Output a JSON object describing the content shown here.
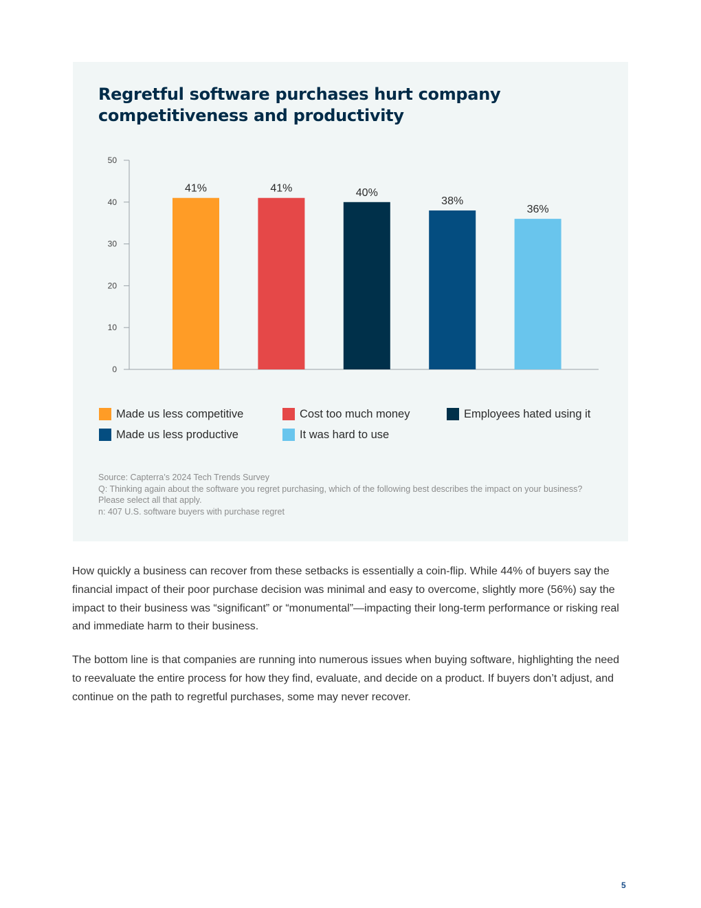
{
  "chart_data": {
    "type": "bar",
    "title": "Regretful software purchases hurt company competitiveness and productivity",
    "categories": [
      "Made us less competitive",
      "Cost too much money",
      "Employees hated using it",
      "Made us less productive",
      "It was hard to use"
    ],
    "values": [
      41,
      41,
      40,
      38,
      36
    ],
    "data_labels": [
      "41%",
      "41%",
      "40%",
      "38%",
      "36%"
    ],
    "colors": [
      "#ff9c26",
      "#e54848",
      "#00304a",
      "#044d80",
      "#69c5ed"
    ],
    "ylim": [
      0,
      50
    ],
    "yticks": [
      0,
      10,
      20,
      30,
      40,
      50
    ],
    "ytick_labels": [
      "0",
      "10",
      "20",
      "30",
      "40",
      "50"
    ],
    "xlabel": "",
    "ylabel": "",
    "grid": false,
    "legend_position": "bottom"
  },
  "legend": {
    "items": [
      {
        "label": "Made us less competitive",
        "color": "#ff9c26"
      },
      {
        "label": "Cost too much money",
        "color": "#e54848"
      },
      {
        "label": "Employees hated using it",
        "color": "#00304a"
      },
      {
        "label": "Made us less productive",
        "color": "#044d80"
      },
      {
        "label": "It was hard to use",
        "color": "#69c5ed"
      }
    ]
  },
  "source": {
    "line1": "Source: Capterra’s 2024 Tech Trends Survey",
    "line2": "Q: Thinking again about the software you regret purchasing, which of the following best describes the impact on your business? Please select all that apply.",
    "line3": "n: 407 U.S. software buyers with purchase regret"
  },
  "body": {
    "paragraph1": "How quickly a business can recover from these setbacks is essentially a coin-flip. While 44% of buyers say the financial impact of their poor purchase decision was minimal and easy to overcome, slightly more (56%) say the impact to their business was “significant” or “monumental”—impacting their long-term performance or risking real and immediate harm to their business.",
    "paragraph2": "The bottom line is that companies are running into numerous issues when buying software, highlighting the need to reevaluate the entire process for how they find, evaluate, and decide on a product. If buyers don’t adjust, and continue on the path to regretful purchases, some may never recover."
  },
  "page": {
    "number": "5"
  }
}
